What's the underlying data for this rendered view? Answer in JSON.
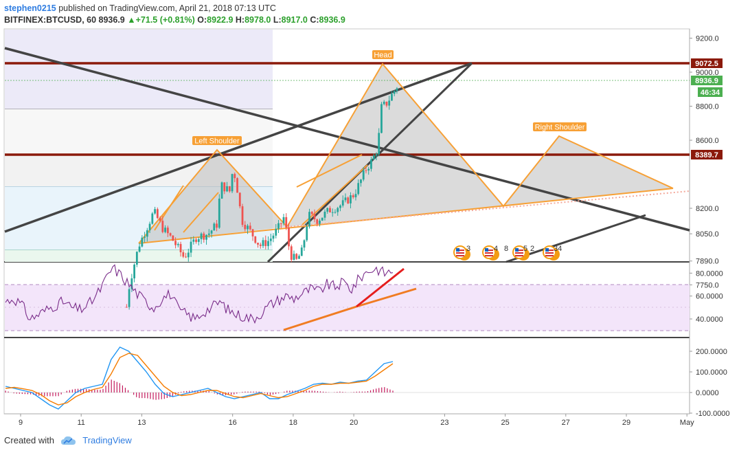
{
  "header": {
    "author": "stephen0215",
    "published_text": "published on TradingView.com, April 21, 2018 07:13 UTC",
    "symbol": "BITFINEX:BTCUSD, 60",
    "last": "8936.9",
    "arrow": "▲",
    "change": "+71.5 (+0.81%)",
    "o_label": "O:",
    "o_value": "8922.9",
    "h_label": "H:",
    "h_value": "8978.0",
    "l_label": "L:",
    "l_value": "8917.0",
    "c_label": "C:",
    "c_value": "8936.9"
  },
  "footer": {
    "created_with": "Created with",
    "brand": "TradingView",
    "logo_icon": "tradingview-cloud-icon"
  },
  "colors": {
    "candle_up": "#26a69a",
    "candle_down": "#ef5350",
    "pattern": "#f7a035",
    "resistance": "#8b1a0b",
    "trend": "#444444",
    "rsi": "#7a2d8a",
    "macd": "#2196f3",
    "signal": "#f57c00",
    "hist": "#c2185b",
    "last_price": "#4caf50"
  },
  "chart_data": [
    {
      "type": "candlestick",
      "pane": "price",
      "symbol": "BITFINEX:BTCUSD",
      "interval": "60",
      "x_ticks": [
        "9",
        "11",
        "13",
        "16",
        "18",
        "20",
        "23",
        "25",
        "27",
        "29",
        "May"
      ],
      "y_ticks": [
        "9200.0",
        "9000.0",
        "8800.0",
        "8600.0",
        "8200.0",
        "8050.0",
        "7890.0",
        "7750.0"
      ],
      "path_points": [
        [
          "12.5",
          7620
        ],
        [
          "12.6",
          7760
        ],
        [
          "12.9",
          7980
        ],
        [
          "13.4",
          8180
        ],
        [
          "13.7",
          8080
        ],
        [
          "14.0",
          8020
        ],
        [
          "14.4",
          7910
        ],
        [
          "14.8",
          8030
        ],
        [
          "15.2",
          8050
        ],
        [
          "15.5",
          8110
        ],
        [
          "15.6",
          8340
        ],
        [
          "15.9",
          8300
        ],
        [
          "16.0",
          8420
        ],
        [
          "16.1",
          8380
        ],
        [
          "16.3",
          8130
        ],
        [
          "16.6",
          8060
        ],
        [
          "16.9",
          7980
        ],
        [
          "17.2",
          8010
        ],
        [
          "17.5",
          8080
        ],
        [
          "17.7",
          8150
        ],
        [
          "17.9",
          7930
        ],
        [
          "18.1",
          7890
        ],
        [
          "18.3",
          7950
        ],
        [
          "18.5",
          8160
        ],
        [
          "18.8",
          8130
        ],
        [
          "19.2",
          8190
        ],
        [
          "19.6",
          8220
        ],
        [
          "20.0",
          8280
        ],
        [
          "20.2",
          8350
        ],
        [
          "20.4",
          8430
        ],
        [
          "20.6",
          8480
        ],
        [
          "20.8",
          8560
        ],
        [
          "20.9",
          8790
        ],
        [
          "21.1",
          8820
        ],
        [
          "21.3",
          8880
        ],
        [
          "21.5",
          8937
        ]
      ],
      "last_price": 8936.9,
      "countdown": "46:34",
      "levels": [
        {
          "name": "resistance",
          "value": 9072.5,
          "label": "9072.5"
        },
        {
          "name": "support",
          "value": 8389.7,
          "label": "8389.7"
        }
      ],
      "annotations": [
        "Left Shoulder",
        "Head",
        "Right Shoulder"
      ],
      "event_icons": [
        {
          "date": "21",
          "label": "3"
        },
        {
          "date": "23",
          "label": "4"
        },
        {
          "date": "24",
          "label": "8"
        },
        {
          "date": "24.5",
          "label": "5"
        },
        {
          "date": "25",
          "label": "2"
        },
        {
          "date": "26",
          "label": "34"
        }
      ]
    },
    {
      "type": "line",
      "pane": "rsi",
      "y_ticks": [
        "80.0000",
        "60.0000",
        "40.0000"
      ],
      "bands": [
        70,
        30
      ],
      "series": [
        {
          "values": [
            55,
            58,
            52,
            40,
            44,
            48,
            52,
            55,
            50,
            48,
            52,
            60,
            72,
            85,
            78,
            70,
            62,
            55,
            50,
            58,
            62,
            48,
            44,
            40,
            46,
            50,
            55,
            48,
            44,
            42,
            40,
            45,
            52,
            56,
            60,
            58,
            62,
            66,
            64,
            70,
            68,
            72,
            66,
            76,
            82,
            84,
            80,
            82
          ]
        }
      ]
    },
    {
      "type": "line",
      "pane": "macd",
      "y_ticks": [
        "200.0000",
        "100.0000",
        "0.0000",
        "-100.0000"
      ],
      "series": [
        {
          "values": [
            30,
            20,
            10,
            0,
            -30,
            -60,
            -80,
            -40,
            0,
            20,
            30,
            40,
            160,
            220,
            200,
            150,
            100,
            40,
            -5,
            -20,
            -10,
            0,
            10,
            20,
            0,
            -20,
            -30,
            -20,
            -10,
            0,
            -30,
            -30,
            -10,
            5,
            20,
            40,
            45,
            40,
            50,
            45,
            55,
            60,
            100,
            140,
            150
          ]
        },
        {
          "values": [
            20,
            25,
            18,
            10,
            -10,
            -40,
            -60,
            -50,
            -20,
            0,
            15,
            25,
            90,
            170,
            190,
            180,
            130,
            80,
            30,
            0,
            -15,
            -10,
            0,
            10,
            10,
            -5,
            -20,
            -25,
            -15,
            -5,
            -15,
            -25,
            -20,
            -5,
            10,
            30,
            40,
            40,
            45,
            45,
            50,
            55,
            80,
            110,
            140
          ]
        }
      ]
    }
  ]
}
